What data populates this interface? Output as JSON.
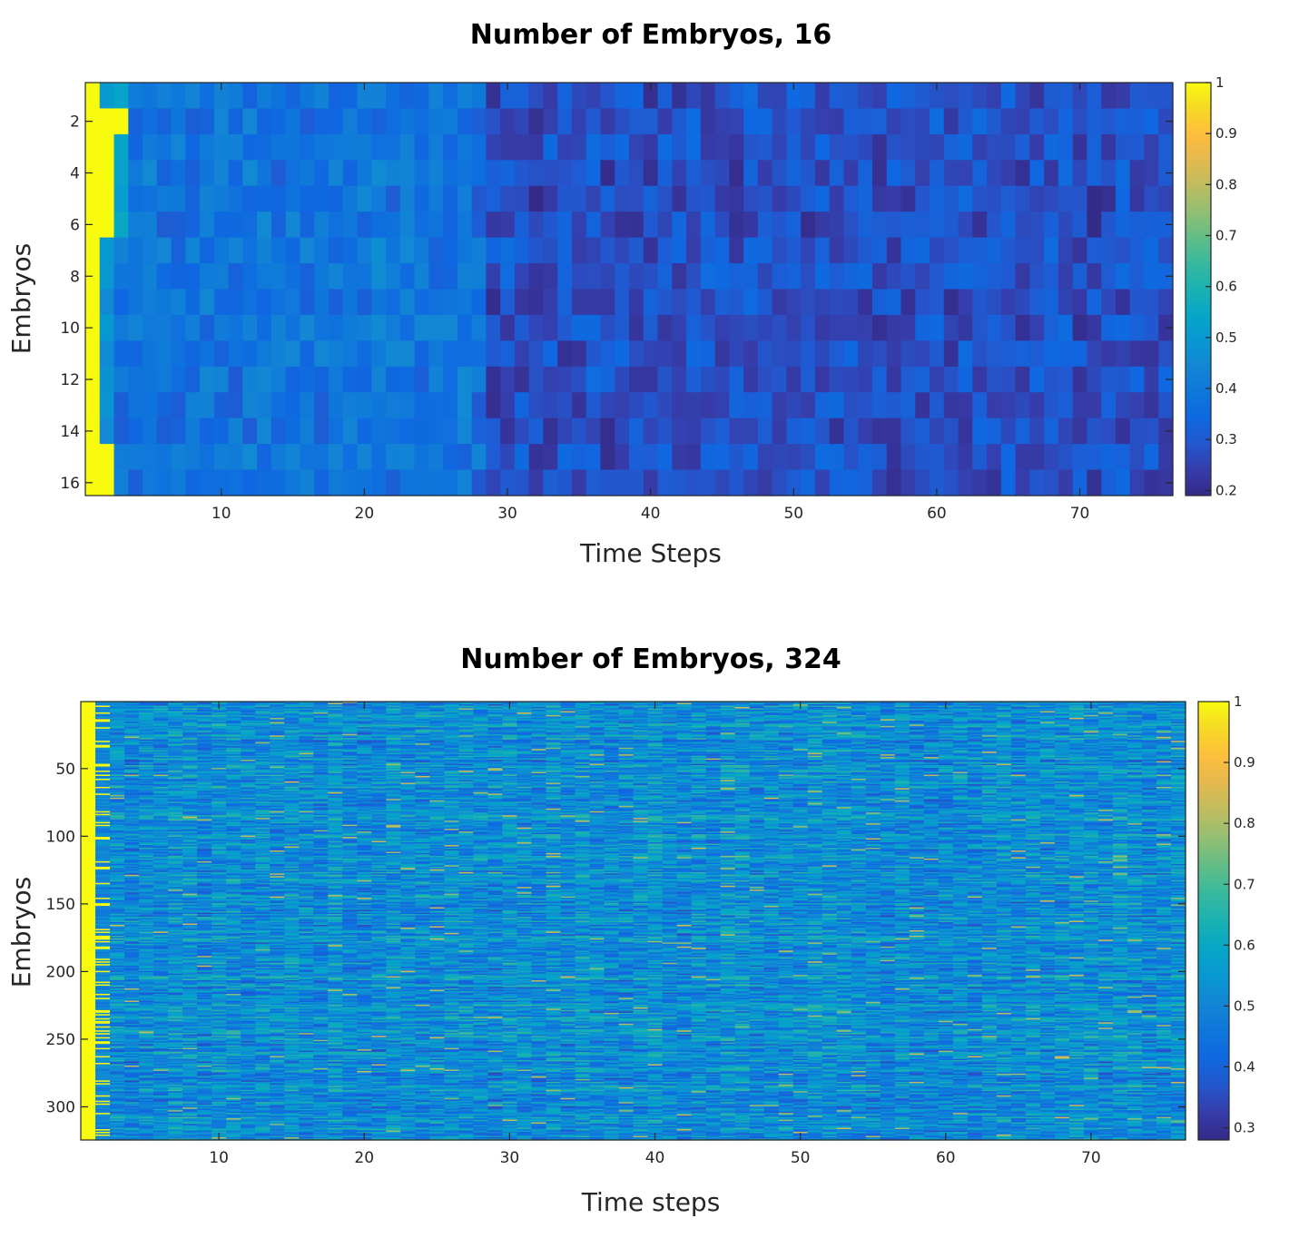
{
  "chart_data": [
    {
      "type": "heatmap",
      "title": "Number of Embryos, 16",
      "xlabel": "Time Steps",
      "ylabel": "Embryos",
      "n_rows": 16,
      "n_cols": 76,
      "xlim": [
        0.5,
        76.5
      ],
      "ylim": [
        0.5,
        16.5
      ],
      "y_direction": "reversed",
      "x_ticks": [
        10,
        20,
        30,
        40,
        50,
        60,
        70
      ],
      "y_ticks": [
        2,
        4,
        6,
        8,
        10,
        12,
        14,
        16
      ],
      "colorbar": {
        "min": 0.19,
        "max": 1,
        "ticks": [
          1,
          0.9,
          0.8,
          0.7,
          0.6,
          0.5,
          0.4,
          0.3,
          0.2
        ],
        "colormap": "parula",
        "placement": "right"
      },
      "value_pattern": {
        "saturated_first_column": 1,
        "saturated_cells": [
          [
            2,
            2
          ],
          [
            2,
            3
          ],
          [
            3,
            2
          ],
          [
            4,
            2
          ],
          [
            5,
            2
          ],
          [
            6,
            2
          ],
          [
            15,
            2
          ],
          [
            16,
            2
          ]
        ],
        "cols_1_to_28_typical": 0.38,
        "cols_29_to_76_typical": 0.28
      }
    },
    {
      "type": "heatmap",
      "title": "Number of Embryos, 324",
      "xlabel": "Time steps",
      "ylabel": "Embryos",
      "n_rows": 324,
      "n_cols": 76,
      "xlim": [
        0.5,
        76.5
      ],
      "ylim": [
        0.5,
        324.5
      ],
      "y_direction": "reversed",
      "x_ticks": [
        10,
        20,
        30,
        40,
        50,
        60,
        70
      ],
      "y_ticks": [
        50,
        100,
        150,
        200,
        250,
        300
      ],
      "colorbar": {
        "min": 0.28,
        "max": 1,
        "ticks": [
          1,
          0.9,
          0.8,
          0.7,
          0.6,
          0.5,
          0.4,
          0.3
        ],
        "colormap": "parula",
        "placement": "right"
      },
      "value_pattern": {
        "saturated_first_column": 1,
        "second_column_partially_saturated": true,
        "typical_value": 0.52,
        "range": [
          0.3,
          0.8
        ]
      }
    }
  ]
}
